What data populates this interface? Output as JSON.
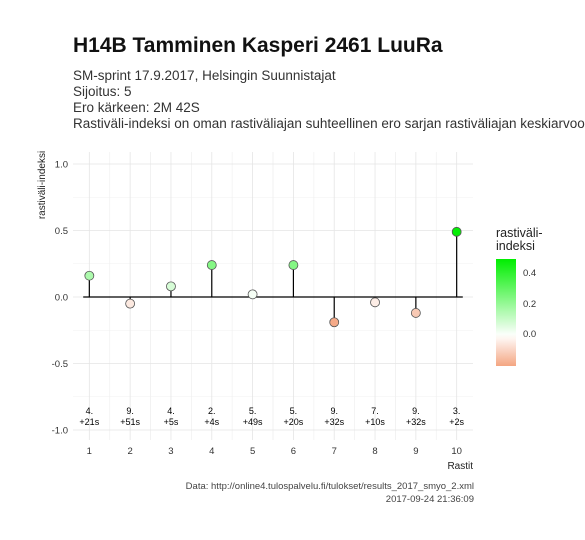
{
  "header": {
    "title": "H14B Tamminen Kasperi 2461 LuuRa",
    "lines": [
      "SM-sprint 17.9.2017, Helsingin Suunnistajat",
      "Sijoitus: 5",
      "Ero kärkeen: 2M 42S",
      "Rastiväli-indeksi on oman rastiväliajan suhteellinen ero sarjan rastiväliajan keskiarvoon"
    ]
  },
  "caption": {
    "source": "Data: http://online4.tulospalvelu.fi/tulokset/results_2017_smyo_2.xml",
    "timestamp": "2017-09-24 21:36:09"
  },
  "colors": {
    "positive": "#00ee00",
    "zero": "#ffffff",
    "negative": "#f4a582",
    "axis_line": "#000000",
    "grid": "#e5e5e5"
  },
  "chart_data": {
    "type": "lollipop",
    "xlabel": "Rastit",
    "ylabel": "rastiväli-indeksi",
    "xlim": [
      0.6,
      10.4
    ],
    "ylim": [
      -1.0,
      1.0
    ],
    "y_ticks": [
      -1.0,
      -0.5,
      0.0,
      0.5,
      1.0
    ],
    "y_tick_labels": [
      "-1.0",
      "-0.5",
      "0.0",
      "0.5",
      "1.0"
    ],
    "x_ticks": [
      1,
      2,
      3,
      4,
      5,
      6,
      7,
      8,
      9,
      10
    ],
    "grid": true,
    "x": [
      1,
      2,
      3,
      4,
      5,
      6,
      7,
      8,
      9,
      10
    ],
    "values": [
      0.16,
      -0.05,
      0.08,
      0.24,
      0.02,
      0.24,
      -0.19,
      -0.04,
      -0.12,
      0.49
    ],
    "annotations": [
      [
        "4.",
        "+21s"
      ],
      [
        "9.",
        "+51s"
      ],
      [
        "4.",
        "+5s"
      ],
      [
        "2.",
        "+4s"
      ],
      [
        "5.",
        "+49s"
      ],
      [
        "5.",
        "+20s"
      ],
      [
        "9.",
        "+32s"
      ],
      [
        "7.",
        "+10s"
      ],
      [
        "9.",
        "+32s"
      ],
      [
        "3.",
        "+2s"
      ]
    ],
    "legend": {
      "title": [
        "rastiväli-",
        "indeksi"
      ],
      "placement": "right",
      "ticks": [
        "0.4",
        "0.2",
        "0.0"
      ],
      "tick_values": [
        0.4,
        0.2,
        0.0
      ],
      "range": [
        -0.2,
        0.5
      ]
    }
  }
}
